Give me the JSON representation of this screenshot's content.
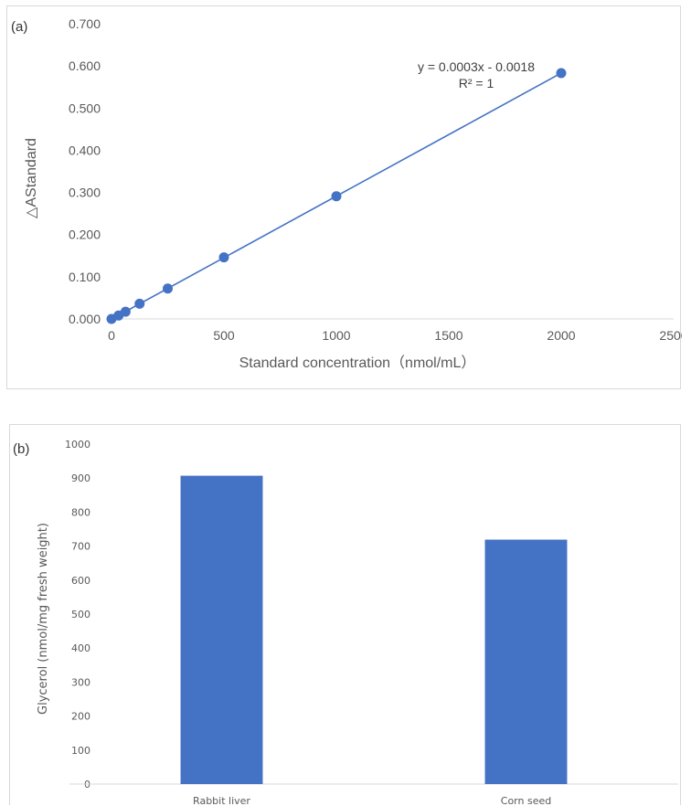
{
  "chart_data": [
    {
      "type": "scatter",
      "panel_label": "(a)",
      "xlabel": "Standard concentration（nmol/mL）",
      "ylabel": "△AStandard",
      "xlim": [
        0,
        2500
      ],
      "ylim": [
        0,
        0.7
      ],
      "x_ticks": [
        "0",
        "500",
        "1000",
        "1500",
        "2000",
        "2500"
      ],
      "y_ticks": [
        "0.000",
        "0.100",
        "0.200",
        "0.300",
        "0.400",
        "0.500",
        "0.600",
        "0.700"
      ],
      "grid": false,
      "series": [
        {
          "x": [
            0,
            31.25,
            62.5,
            125,
            250,
            500,
            1000,
            2000
          ],
          "y": [
            0.0,
            0.008,
            0.017,
            0.036,
            0.072,
            0.146,
            0.291,
            0.583
          ],
          "color": "#4472C4",
          "trendline": "linear"
        }
      ],
      "annotations": {
        "equation": "y = 0.0003x - 0.0018",
        "r2": "R² = 1"
      }
    },
    {
      "type": "bar",
      "panel_label": "(b)",
      "categories": [
        "Rabbit liver",
        "Corn seed"
      ],
      "values": [
        907,
        719
      ],
      "ylabel": "Glycerol (nmol/mg fresh weight)",
      "xlabel": "",
      "ylim": [
        0,
        1000
      ],
      "y_ticks": [
        "0",
        "100",
        "200",
        "300",
        "400",
        "500",
        "600",
        "700",
        "800",
        "900",
        "1000"
      ],
      "grid": false,
      "color": "#4472C4"
    }
  ]
}
